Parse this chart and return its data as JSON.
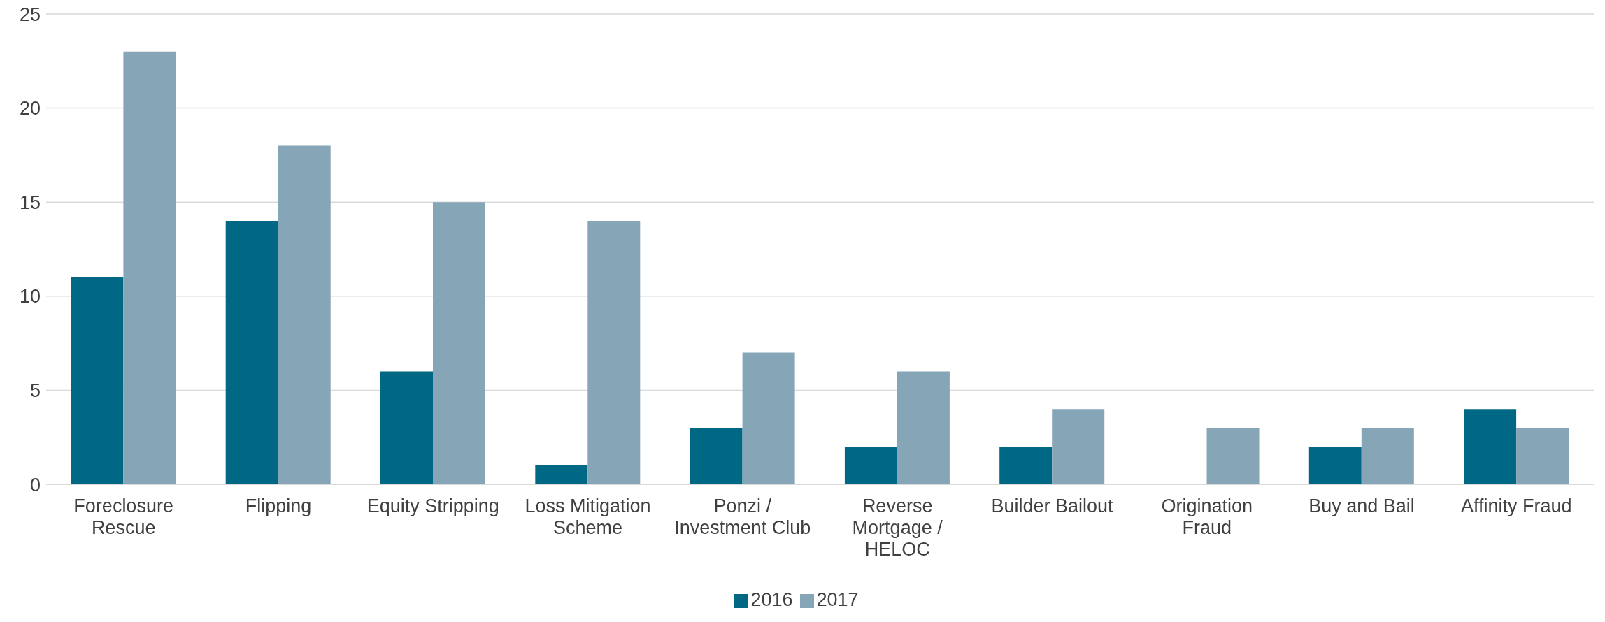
{
  "chart_data": {
    "type": "bar",
    "categories": [
      "Foreclosure Rescue",
      "Flipping",
      "Equity Stripping",
      "Loss Mitigation Scheme",
      "Ponzi / Investment Club",
      "Reverse Mortgage / HELOC",
      "Builder Bailout",
      "Origination Fraud",
      "Buy and Bail",
      "Affinity Fraud"
    ],
    "series": [
      {
        "name": "2016",
        "color": "#006884",
        "values": [
          11,
          14,
          6,
          1,
          3,
          2,
          2,
          0,
          2,
          4
        ]
      },
      {
        "name": "2017",
        "color": "#86a5b7",
        "values": [
          23,
          18,
          15,
          14,
          7,
          6,
          4,
          3,
          3,
          3
        ]
      }
    ],
    "ylim": [
      0,
      25
    ],
    "yticks": [
      0,
      5,
      10,
      15,
      20,
      25
    ],
    "grid": "y",
    "legend": "bottom"
  }
}
